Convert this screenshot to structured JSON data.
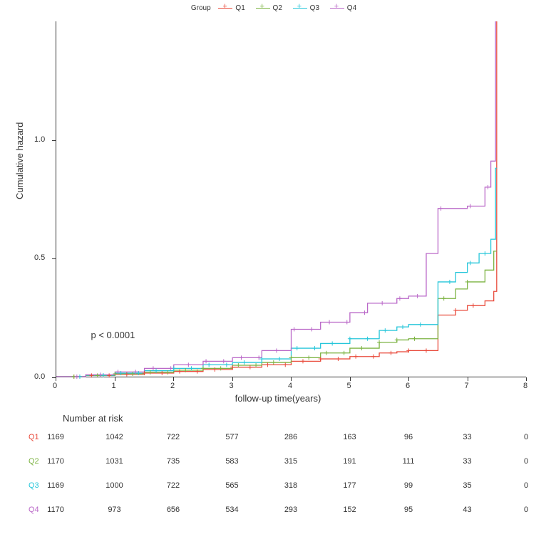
{
  "legend": {
    "title": "Group",
    "items": [
      {
        "label": "Q1",
        "color": "#E94B3C"
      },
      {
        "label": "Q2",
        "color": "#7CB342"
      },
      {
        "label": "Q3",
        "color": "#26C6DA"
      },
      {
        "label": "Q4",
        "color": "#BA68C8"
      }
    ]
  },
  "chart": {
    "type": "cumulative-hazard-step",
    "xlabel": "follow-up time(years)",
    "ylabel": "Cumulative hazard",
    "xlim": [
      0,
      8
    ],
    "ylim": [
      0,
      1.5
    ],
    "xticks": [
      0,
      1,
      2,
      3,
      4,
      5,
      6,
      7,
      8
    ],
    "yticks": [
      0.0,
      0.5,
      1.0
    ],
    "background_color": "#ffffff",
    "axis_color": "#333333",
    "tick_fontsize": 11,
    "label_fontsize": 13,
    "line_width": 1.3,
    "pvalue": "p < 0.0001",
    "pvalue_pos_xyears": 0.6,
    "pvalue_pos_yhaz": 0.2,
    "series": [
      {
        "name": "Q1",
        "color": "#E94B3C",
        "points": [
          [
            0,
            0.0
          ],
          [
            0.5,
            0.005
          ],
          [
            1,
            0.01
          ],
          [
            1.5,
            0.015
          ],
          [
            2,
            0.022
          ],
          [
            2.5,
            0.03
          ],
          [
            3,
            0.04
          ],
          [
            3.5,
            0.05
          ],
          [
            4,
            0.065
          ],
          [
            4.5,
            0.075
          ],
          [
            5,
            0.085
          ],
          [
            5.5,
            0.1
          ],
          [
            5.8,
            0.105
          ],
          [
            6,
            0.11
          ],
          [
            6.5,
            0.26
          ],
          [
            6.8,
            0.28
          ],
          [
            7,
            0.3
          ],
          [
            7.3,
            0.32
          ],
          [
            7.45,
            0.36
          ],
          [
            7.5,
            1.5
          ]
        ]
      },
      {
        "name": "Q2",
        "color": "#7CB342",
        "points": [
          [
            0,
            0.0
          ],
          [
            0.5,
            0.005
          ],
          [
            1,
            0.012
          ],
          [
            1.5,
            0.018
          ],
          [
            2,
            0.027
          ],
          [
            2.5,
            0.035
          ],
          [
            3,
            0.048
          ],
          [
            3.5,
            0.06
          ],
          [
            4,
            0.08
          ],
          [
            4.5,
            0.1
          ],
          [
            5,
            0.12
          ],
          [
            5.5,
            0.145
          ],
          [
            5.8,
            0.155
          ],
          [
            6,
            0.16
          ],
          [
            6.5,
            0.33
          ],
          [
            6.8,
            0.37
          ],
          [
            7,
            0.4
          ],
          [
            7.3,
            0.45
          ],
          [
            7.45,
            0.53
          ],
          [
            7.5,
            0.53
          ]
        ]
      },
      {
        "name": "Q3",
        "color": "#26C6DA",
        "points": [
          [
            0,
            0.0
          ],
          [
            0.5,
            0.006
          ],
          [
            1,
            0.015
          ],
          [
            1.5,
            0.025
          ],
          [
            2,
            0.035
          ],
          [
            2.5,
            0.05
          ],
          [
            3,
            0.06
          ],
          [
            3.5,
            0.075
          ],
          [
            4,
            0.12
          ],
          [
            4.5,
            0.14
          ],
          [
            5,
            0.16
          ],
          [
            5.5,
            0.195
          ],
          [
            5.8,
            0.21
          ],
          [
            6,
            0.22
          ],
          [
            6.5,
            0.4
          ],
          [
            6.8,
            0.44
          ],
          [
            7,
            0.48
          ],
          [
            7.2,
            0.52
          ],
          [
            7.4,
            0.58
          ],
          [
            7.48,
            0.88
          ],
          [
            7.5,
            0.88
          ]
        ]
      },
      {
        "name": "Q4",
        "color": "#BA68C8",
        "points": [
          [
            0,
            0.0
          ],
          [
            0.5,
            0.008
          ],
          [
            1,
            0.02
          ],
          [
            1.5,
            0.035
          ],
          [
            2,
            0.05
          ],
          [
            2.5,
            0.065
          ],
          [
            3,
            0.08
          ],
          [
            3.5,
            0.11
          ],
          [
            4,
            0.2
          ],
          [
            4.5,
            0.23
          ],
          [
            5,
            0.27
          ],
          [
            5.3,
            0.31
          ],
          [
            5.8,
            0.33
          ],
          [
            6,
            0.34
          ],
          [
            6.3,
            0.52
          ],
          [
            6.5,
            0.71
          ],
          [
            7,
            0.72
          ],
          [
            7.3,
            0.8
          ],
          [
            7.4,
            0.91
          ],
          [
            7.48,
            1.5
          ]
        ]
      }
    ],
    "censor_marks": [
      {
        "series": 0,
        "x": [
          0.3,
          0.6,
          0.9,
          1.2,
          1.5,
          1.8,
          2.1,
          2.4,
          2.7,
          3.0,
          3.3,
          3.6,
          3.9,
          4.2,
          4.5,
          4.8,
          5.1,
          5.4,
          5.7,
          6.0,
          6.3,
          6.8,
          7.1
        ]
      },
      {
        "series": 1,
        "x": [
          0.3,
          0.7,
          1.0,
          1.3,
          1.6,
          1.9,
          2.2,
          2.5,
          2.8,
          3.1,
          3.4,
          3.7,
          4.0,
          4.3,
          4.6,
          4.9,
          5.2,
          5.5,
          5.8,
          6.1,
          6.6,
          7.0
        ]
      },
      {
        "series": 2,
        "x": [
          0.4,
          0.8,
          1.1,
          1.4,
          1.7,
          2.0,
          2.3,
          2.6,
          2.9,
          3.2,
          3.5,
          3.8,
          4.1,
          4.4,
          4.7,
          5.0,
          5.3,
          5.6,
          5.9,
          6.2,
          6.7,
          7.05,
          7.3
        ]
      },
      {
        "series": 3,
        "x": [
          0.35,
          0.75,
          1.05,
          1.35,
          1.65,
          1.95,
          2.25,
          2.55,
          2.85,
          3.15,
          3.45,
          3.75,
          4.05,
          4.35,
          4.65,
          4.95,
          5.25,
          5.55,
          5.85,
          6.15,
          6.55,
          7.05,
          7.35
        ]
      }
    ]
  },
  "risk_table": {
    "title": "Number at risk",
    "x_positions": [
      0,
      1,
      2,
      3,
      4,
      5,
      6,
      7,
      8
    ],
    "rows": [
      {
        "label": "Q1",
        "color": "#E94B3C",
        "values": [
          1169,
          1042,
          722,
          577,
          286,
          163,
          96,
          33,
          0
        ]
      },
      {
        "label": "Q2",
        "color": "#7CB342",
        "values": [
          1170,
          1031,
          735,
          583,
          315,
          191,
          111,
          33,
          0
        ]
      },
      {
        "label": "Q3",
        "color": "#26C6DA",
        "values": [
          1169,
          1000,
          722,
          565,
          318,
          177,
          99,
          35,
          0
        ]
      },
      {
        "label": "Q4",
        "color": "#BA68C8",
        "values": [
          1170,
          973,
          656,
          534,
          293,
          152,
          95,
          43,
          0
        ]
      }
    ]
  }
}
